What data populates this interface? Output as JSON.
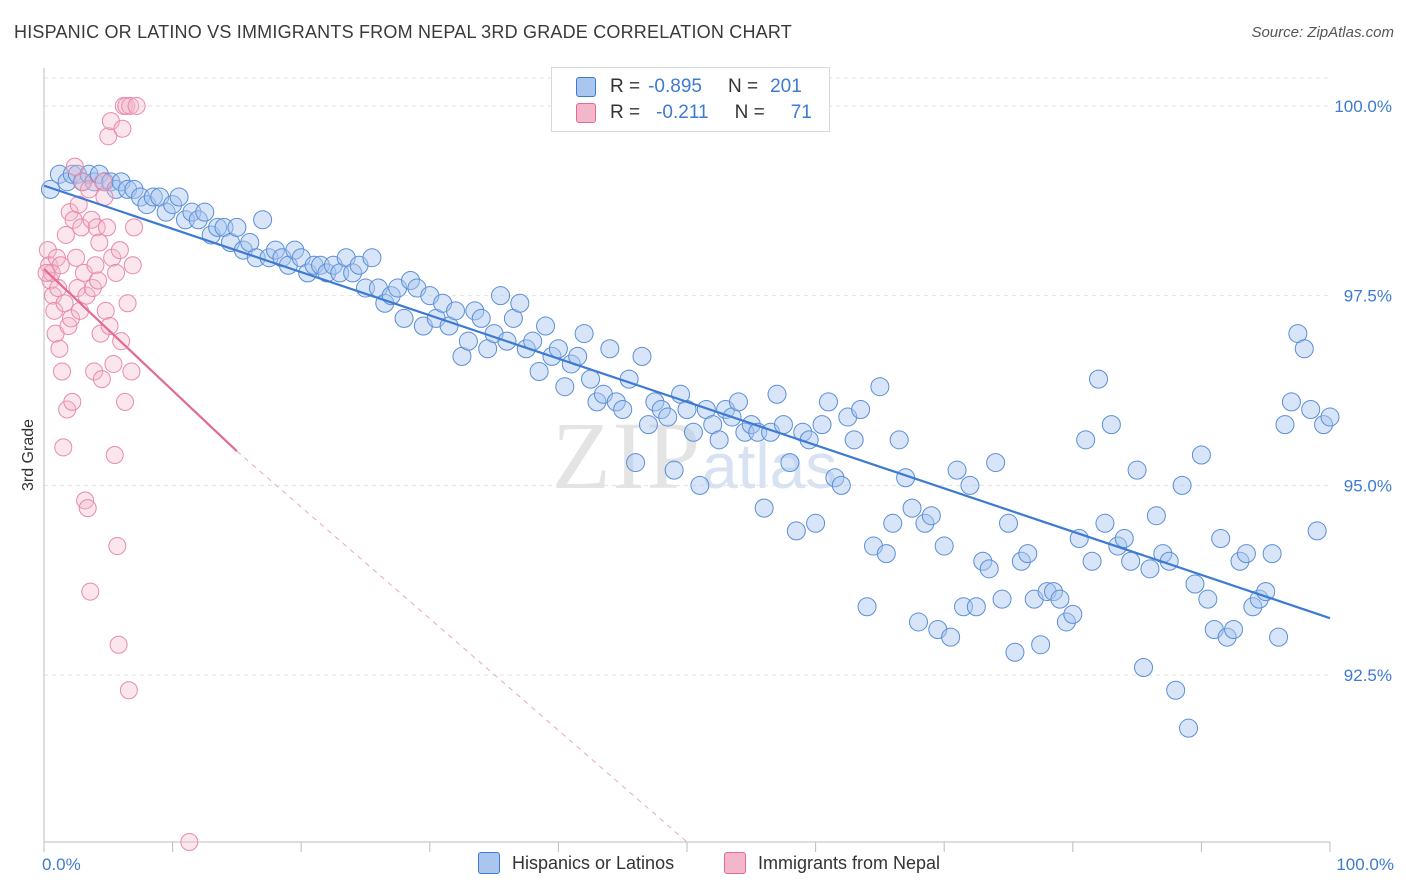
{
  "title": "HISPANIC OR LATINO VS IMMIGRANTS FROM NEPAL 3RD GRADE CORRELATION CHART",
  "source": "Source: ZipAtlas.com",
  "watermark": {
    "zip": "ZIP",
    "atlas": "atlas"
  },
  "legend": {
    "rows": [
      {
        "r_label": "R =",
        "r_value": "-0.895",
        "n_label": "N =",
        "n_value": "201"
      },
      {
        "r_label": "R =",
        "r_value": "-0.211",
        "n_label": "N =",
        "n_value": "71"
      }
    ]
  },
  "colors": {
    "blue": "#3d7ad1",
    "blue_fill": "#a9c6ef",
    "pink": "#e26a93",
    "pink_fill": "#f3b6cb",
    "grid": "#dddddd"
  },
  "chart_data": {
    "type": "scatter",
    "title": "HISPANIC OR LATINO VS IMMIGRANTS FROM NEPAL 3RD GRADE CORRELATION CHART",
    "xlabel": "",
    "ylabel": "3rd Grade",
    "x_ticks": [
      "0.0%",
      "100.0%"
    ],
    "y_ticks": [
      "100.0%",
      "97.5%",
      "95.0%",
      "92.5%"
    ],
    "y_tick_values": [
      100.0,
      97.5,
      95.0,
      92.5
    ],
    "xlim": [
      0,
      100
    ],
    "ylim": [
      90.3,
      100.5
    ],
    "grid": true,
    "legend_placement": "bottom-center",
    "series": [
      {
        "name": "Hispanics or Latinos",
        "color": "#3d7ad1",
        "trend": {
          "x": [
            0,
            100
          ],
          "y": [
            98.95,
            93.25
          ]
        },
        "points": [
          [
            0.5,
            98.9
          ],
          [
            1.2,
            99.1
          ],
          [
            1.8,
            99.0
          ],
          [
            2.2,
            99.1
          ],
          [
            2.6,
            99.1
          ],
          [
            3.0,
            99.0
          ],
          [
            3.5,
            99.1
          ],
          [
            3.9,
            99.0
          ],
          [
            4.3,
            99.1
          ],
          [
            4.7,
            99.0
          ],
          [
            5.2,
            99.0
          ],
          [
            5.6,
            98.9
          ],
          [
            6.0,
            99.0
          ],
          [
            6.5,
            98.9
          ],
          [
            7.0,
            98.9
          ],
          [
            7.5,
            98.8
          ],
          [
            8.0,
            98.7
          ],
          [
            8.5,
            98.8
          ],
          [
            9.0,
            98.8
          ],
          [
            9.5,
            98.6
          ],
          [
            10.0,
            98.7
          ],
          [
            10.5,
            98.8
          ],
          [
            11.0,
            98.5
          ],
          [
            11.5,
            98.6
          ],
          [
            12.0,
            98.5
          ],
          [
            12.5,
            98.6
          ],
          [
            13.0,
            98.3
          ],
          [
            13.5,
            98.4
          ],
          [
            14.0,
            98.4
          ],
          [
            14.5,
            98.2
          ],
          [
            15.0,
            98.4
          ],
          [
            15.5,
            98.1
          ],
          [
            16.0,
            98.2
          ],
          [
            16.5,
            98.0
          ],
          [
            17.0,
            98.5
          ],
          [
            17.5,
            98.0
          ],
          [
            18.0,
            98.1
          ],
          [
            18.5,
            98.0
          ],
          [
            19.0,
            97.9
          ],
          [
            19.5,
            98.1
          ],
          [
            20.0,
            98.0
          ],
          [
            20.5,
            97.8
          ],
          [
            21.0,
            97.9
          ],
          [
            21.5,
            97.9
          ],
          [
            22.0,
            97.8
          ],
          [
            22.5,
            97.9
          ],
          [
            23.0,
            97.8
          ],
          [
            23.5,
            98.0
          ],
          [
            24.0,
            97.8
          ],
          [
            24.5,
            97.9
          ],
          [
            25.0,
            97.6
          ],
          [
            25.5,
            98.0
          ],
          [
            26.0,
            97.6
          ],
          [
            26.5,
            97.4
          ],
          [
            27.0,
            97.5
          ],
          [
            27.5,
            97.6
          ],
          [
            28.0,
            97.2
          ],
          [
            28.5,
            97.7
          ],
          [
            29.0,
            97.6
          ],
          [
            29.5,
            97.1
          ],
          [
            30.0,
            97.5
          ],
          [
            30.5,
            97.2
          ],
          [
            31.0,
            97.4
          ],
          [
            31.5,
            97.1
          ],
          [
            32.0,
            97.3
          ],
          [
            32.5,
            96.7
          ],
          [
            33.0,
            96.9
          ],
          [
            33.5,
            97.3
          ],
          [
            34.0,
            97.2
          ],
          [
            34.5,
            96.8
          ],
          [
            35.0,
            97.0
          ],
          [
            35.5,
            97.5
          ],
          [
            36.0,
            96.9
          ],
          [
            36.5,
            97.2
          ],
          [
            37.0,
            97.4
          ],
          [
            37.5,
            96.8
          ],
          [
            38.0,
            96.9
          ],
          [
            38.5,
            96.5
          ],
          [
            39.0,
            97.1
          ],
          [
            39.5,
            96.7
          ],
          [
            40.0,
            96.8
          ],
          [
            40.5,
            96.3
          ],
          [
            41.0,
            96.6
          ],
          [
            41.5,
            96.7
          ],
          [
            42.0,
            97.0
          ],
          [
            42.5,
            96.4
          ],
          [
            43.0,
            96.1
          ],
          [
            43.5,
            96.2
          ],
          [
            44.0,
            96.8
          ],
          [
            44.5,
            96.1
          ],
          [
            45.0,
            96.0
          ],
          [
            45.5,
            96.4
          ],
          [
            46.0,
            95.3
          ],
          [
            46.5,
            96.7
          ],
          [
            47.0,
            95.8
          ],
          [
            47.5,
            96.1
          ],
          [
            48.0,
            96.0
          ],
          [
            48.5,
            95.9
          ],
          [
            49.0,
            95.2
          ],
          [
            49.5,
            96.2
          ],
          [
            50.0,
            96.0
          ],
          [
            50.5,
            95.7
          ],
          [
            51.0,
            95.0
          ],
          [
            51.5,
            96.0
          ],
          [
            52.0,
            95.8
          ],
          [
            52.5,
            95.6
          ],
          [
            53.0,
            96.0
          ],
          [
            53.5,
            95.9
          ],
          [
            54.0,
            96.1
          ],
          [
            54.5,
            95.7
          ],
          [
            55.0,
            95.8
          ],
          [
            55.5,
            95.7
          ],
          [
            56.0,
            94.7
          ],
          [
            56.5,
            95.7
          ],
          [
            57.0,
            96.2
          ],
          [
            57.5,
            95.8
          ],
          [
            58.0,
            95.3
          ],
          [
            58.5,
            94.4
          ],
          [
            59.0,
            95.7
          ],
          [
            59.5,
            95.6
          ],
          [
            60.0,
            94.5
          ],
          [
            60.5,
            95.8
          ],
          [
            61.0,
            96.1
          ],
          [
            61.5,
            95.1
          ],
          [
            62.0,
            95.0
          ],
          [
            62.5,
            95.9
          ],
          [
            63.0,
            95.6
          ],
          [
            63.5,
            96.0
          ],
          [
            64.0,
            93.4
          ],
          [
            64.5,
            94.2
          ],
          [
            65.0,
            96.3
          ],
          [
            65.5,
            94.1
          ],
          [
            66.0,
            94.5
          ],
          [
            66.5,
            95.6
          ],
          [
            67.0,
            95.1
          ],
          [
            67.5,
            94.7
          ],
          [
            68.0,
            93.2
          ],
          [
            68.5,
            94.5
          ],
          [
            69.0,
            94.6
          ],
          [
            69.5,
            93.1
          ],
          [
            70.0,
            94.2
          ],
          [
            70.5,
            93.0
          ],
          [
            71.0,
            95.2
          ],
          [
            71.5,
            93.4
          ],
          [
            72.0,
            95.0
          ],
          [
            72.5,
            93.4
          ],
          [
            73.0,
            94.0
          ],
          [
            73.5,
            93.9
          ],
          [
            74.0,
            95.3
          ],
          [
            74.5,
            93.5
          ],
          [
            75.0,
            94.5
          ],
          [
            75.5,
            92.8
          ],
          [
            76.0,
            94.0
          ],
          [
            76.5,
            94.1
          ],
          [
            77.0,
            93.5
          ],
          [
            77.5,
            92.9
          ],
          [
            78.0,
            93.6
          ],
          [
            78.5,
            93.6
          ],
          [
            79.0,
            93.5
          ],
          [
            79.5,
            93.2
          ],
          [
            80.0,
            93.3
          ],
          [
            80.5,
            94.3
          ],
          [
            81.0,
            95.6
          ],
          [
            81.5,
            94.0
          ],
          [
            82.0,
            96.4
          ],
          [
            82.5,
            94.5
          ],
          [
            83.0,
            95.8
          ],
          [
            83.5,
            94.2
          ],
          [
            84.0,
            94.3
          ],
          [
            84.5,
            94.0
          ],
          [
            85.0,
            95.2
          ],
          [
            85.5,
            92.6
          ],
          [
            86.0,
            93.9
          ],
          [
            86.5,
            94.6
          ],
          [
            87.0,
            94.1
          ],
          [
            87.5,
            94.0
          ],
          [
            88.0,
            92.3
          ],
          [
            88.5,
            95.0
          ],
          [
            89.0,
            91.8
          ],
          [
            89.5,
            93.7
          ],
          [
            90.0,
            95.4
          ],
          [
            90.5,
            93.5
          ],
          [
            91.0,
            93.1
          ],
          [
            91.5,
            94.3
          ],
          [
            92.0,
            93.0
          ],
          [
            92.5,
            93.1
          ],
          [
            93.0,
            94.0
          ],
          [
            93.5,
            94.1
          ],
          [
            94.0,
            93.4
          ],
          [
            94.5,
            93.5
          ],
          [
            95.0,
            93.6
          ],
          [
            95.5,
            94.1
          ],
          [
            96.0,
            93.0
          ],
          [
            96.5,
            95.8
          ],
          [
            97.0,
            96.1
          ],
          [
            97.5,
            97.0
          ],
          [
            98.0,
            96.8
          ],
          [
            98.5,
            96.0
          ],
          [
            99.0,
            94.4
          ],
          [
            99.5,
            95.8
          ],
          [
            100.0,
            95.9
          ]
        ]
      },
      {
        "name": "Immigrants from Nepal",
        "color": "#e26a93",
        "trend": {
          "x": [
            0,
            15.0
          ],
          "y": [
            97.85,
            95.45
          ]
        },
        "trend_extension": {
          "x": [
            15.0,
            50.0
          ],
          "y": [
            95.45,
            90.3
          ]
        },
        "points": [
          [
            0.3,
            98.1
          ],
          [
            0.4,
            97.9
          ],
          [
            0.5,
            97.7
          ],
          [
            0.6,
            97.8
          ],
          [
            0.7,
            97.5
          ],
          [
            0.8,
            97.3
          ],
          [
            0.9,
            97.0
          ],
          [
            1.0,
            98.0
          ],
          [
            1.1,
            97.6
          ],
          [
            1.2,
            96.8
          ],
          [
            1.3,
            97.9
          ],
          [
            1.4,
            96.5
          ],
          [
            1.5,
            95.5
          ],
          [
            1.6,
            97.4
          ],
          [
            1.7,
            98.3
          ],
          [
            1.8,
            96.0
          ],
          [
            1.9,
            97.1
          ],
          [
            2.0,
            98.6
          ],
          [
            2.1,
            97.2
          ],
          [
            2.2,
            96.1
          ],
          [
            2.3,
            98.5
          ],
          [
            2.4,
            99.2
          ],
          [
            2.5,
            98.0
          ],
          [
            2.6,
            97.6
          ],
          [
            2.7,
            98.7
          ],
          [
            2.8,
            97.3
          ],
          [
            2.9,
            98.4
          ],
          [
            3.0,
            99.0
          ],
          [
            3.1,
            97.8
          ],
          [
            3.2,
            94.8
          ],
          [
            3.3,
            97.5
          ],
          [
            3.4,
            94.7
          ],
          [
            3.5,
            98.9
          ],
          [
            3.6,
            93.6
          ],
          [
            3.7,
            98.5
          ],
          [
            3.8,
            97.6
          ],
          [
            3.9,
            96.5
          ],
          [
            4.0,
            97.9
          ],
          [
            4.1,
            98.4
          ],
          [
            4.2,
            97.7
          ],
          [
            4.3,
            98.2
          ],
          [
            4.4,
            97.0
          ],
          [
            4.5,
            96.4
          ],
          [
            4.6,
            99.0
          ],
          [
            4.7,
            98.8
          ],
          [
            4.8,
            97.3
          ],
          [
            4.9,
            98.4
          ],
          [
            5.0,
            99.6
          ],
          [
            5.1,
            97.1
          ],
          [
            5.2,
            99.8
          ],
          [
            5.3,
            98.0
          ],
          [
            5.4,
            96.6
          ],
          [
            5.5,
            95.4
          ],
          [
            5.6,
            97.8
          ],
          [
            5.7,
            94.2
          ],
          [
            5.8,
            92.9
          ],
          [
            5.9,
            98.1
          ],
          [
            6.0,
            96.9
          ],
          [
            6.1,
            99.7
          ],
          [
            6.2,
            100.0
          ],
          [
            6.3,
            96.1
          ],
          [
            6.4,
            100.0
          ],
          [
            6.5,
            97.4
          ],
          [
            6.6,
            92.3
          ],
          [
            6.7,
            100.0
          ],
          [
            6.8,
            96.5
          ],
          [
            6.9,
            97.9
          ],
          [
            7.0,
            98.4
          ],
          [
            7.2,
            100.0
          ],
          [
            11.3,
            90.3
          ],
          [
            0.2,
            97.8
          ]
        ]
      }
    ]
  }
}
